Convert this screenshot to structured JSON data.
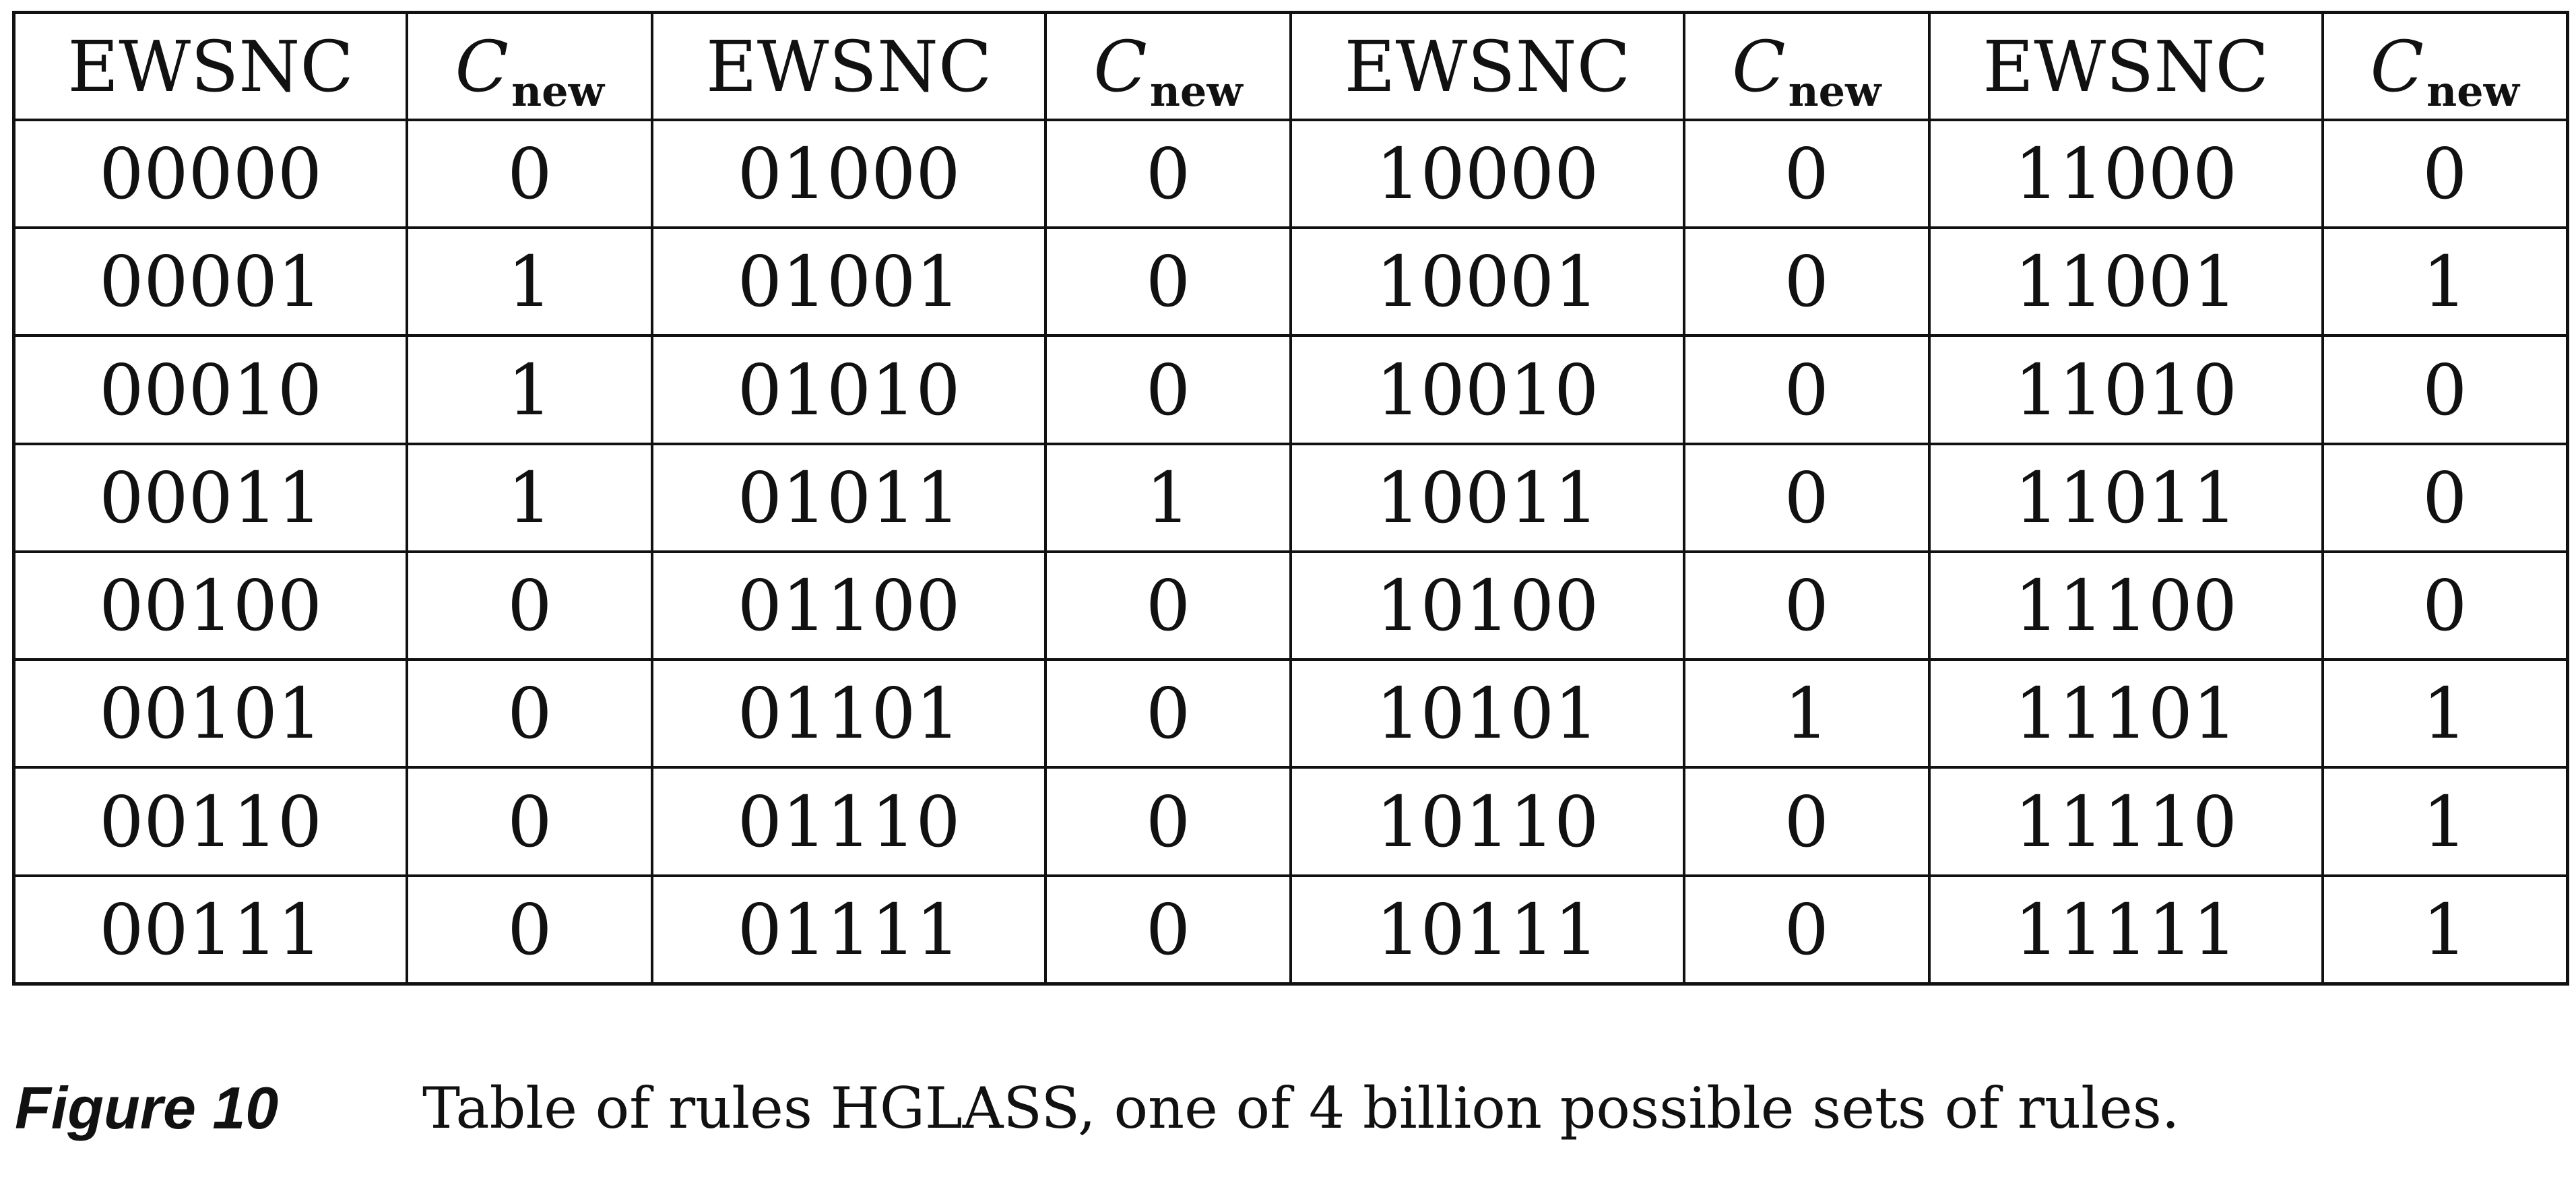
{
  "table": {
    "header_code": "EWSNC",
    "header_value_symbol": "C",
    "header_value_subscript": "new",
    "column_groups": [
      {
        "rows": [
          {
            "code": "00000",
            "value": "0"
          },
          {
            "code": "00001",
            "value": "1"
          },
          {
            "code": "00010",
            "value": "1"
          },
          {
            "code": "00011",
            "value": "1"
          },
          {
            "code": "00100",
            "value": "0"
          },
          {
            "code": "00101",
            "value": "0"
          },
          {
            "code": "00110",
            "value": "0"
          },
          {
            "code": "00111",
            "value": "0"
          }
        ]
      },
      {
        "rows": [
          {
            "code": "01000",
            "value": "0"
          },
          {
            "code": "01001",
            "value": "0"
          },
          {
            "code": "01010",
            "value": "0"
          },
          {
            "code": "01011",
            "value": "1"
          },
          {
            "code": "01100",
            "value": "0"
          },
          {
            "code": "01101",
            "value": "0"
          },
          {
            "code": "01110",
            "value": "0"
          },
          {
            "code": "01111",
            "value": "0"
          }
        ]
      },
      {
        "rows": [
          {
            "code": "10000",
            "value": "0"
          },
          {
            "code": "10001",
            "value": "0"
          },
          {
            "code": "10010",
            "value": "0"
          },
          {
            "code": "10011",
            "value": "0"
          },
          {
            "code": "10100",
            "value": "0"
          },
          {
            "code": "10101",
            "value": "1"
          },
          {
            "code": "10110",
            "value": "0"
          },
          {
            "code": "10111",
            "value": "0"
          }
        ]
      },
      {
        "rows": [
          {
            "code": "11000",
            "value": "0"
          },
          {
            "code": "11001",
            "value": "1"
          },
          {
            "code": "11010",
            "value": "0"
          },
          {
            "code": "11011",
            "value": "0"
          },
          {
            "code": "11100",
            "value": "0"
          },
          {
            "code": "11101",
            "value": "1"
          },
          {
            "code": "11110",
            "value": "1"
          },
          {
            "code": "11111",
            "value": "1"
          }
        ]
      }
    ]
  },
  "caption": {
    "label": "Figure 10",
    "text": "Table of rules HGLASS, one of 4 billion possible sets of rules."
  }
}
